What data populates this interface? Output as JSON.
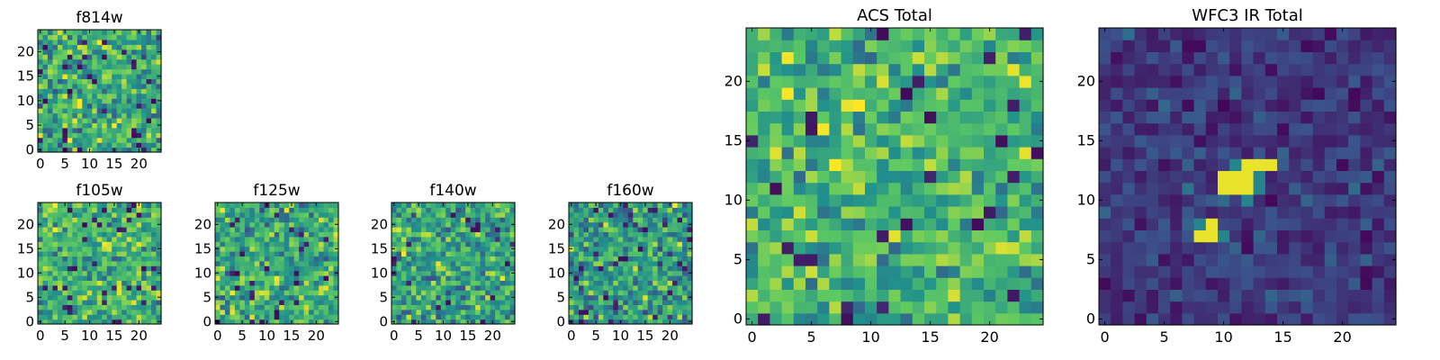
{
  "figure": {
    "background": "#ffffff"
  },
  "colormap": {
    "name": "viridis",
    "stops": [
      "#440154",
      "#3b528b",
      "#21918c",
      "#5ec962",
      "#fde725"
    ]
  },
  "chart_data": [
    {
      "id": "f814w",
      "type": "heatmap",
      "title": "f814w",
      "size": 25,
      "xlim": [
        0,
        24
      ],
      "ylim": [
        0,
        24
      ],
      "xticks": [
        0,
        5,
        10,
        15,
        20
      ],
      "yticks": [
        0,
        5,
        10,
        15,
        20
      ],
      "value_range": [
        0,
        1
      ],
      "pattern": "noise",
      "seed": 11,
      "mean": 0.6,
      "spread": 0.45
    },
    {
      "id": "f105w",
      "type": "heatmap",
      "title": "f105w",
      "size": 25,
      "xlim": [
        0,
        24
      ],
      "ylim": [
        0,
        24
      ],
      "xticks": [
        0,
        5,
        10,
        15,
        20
      ],
      "yticks": [
        0,
        5,
        10,
        15,
        20
      ],
      "value_range": [
        0,
        1
      ],
      "pattern": "noise",
      "seed": 23,
      "mean": 0.65,
      "spread": 0.4
    },
    {
      "id": "f125w",
      "type": "heatmap",
      "title": "f125w",
      "size": 25,
      "xlim": [
        0,
        24
      ],
      "ylim": [
        0,
        24
      ],
      "xticks": [
        0,
        5,
        10,
        15,
        20
      ],
      "yticks": [
        0,
        5,
        10,
        15,
        20
      ],
      "value_range": [
        0,
        1
      ],
      "pattern": "noise",
      "seed": 37,
      "mean": 0.62,
      "spread": 0.42
    },
    {
      "id": "f140w",
      "type": "heatmap",
      "title": "f140w",
      "size": 25,
      "xlim": [
        0,
        24
      ],
      "ylim": [
        0,
        24
      ],
      "xticks": [
        0,
        5,
        10,
        15,
        20
      ],
      "yticks": [
        0,
        5,
        10,
        15,
        20
      ],
      "value_range": [
        0,
        1
      ],
      "pattern": "noise",
      "seed": 41,
      "mean": 0.58,
      "spread": 0.42
    },
    {
      "id": "f160w",
      "type": "heatmap",
      "title": "f160w",
      "size": 25,
      "xlim": [
        0,
        24
      ],
      "ylim": [
        0,
        24
      ],
      "xticks": [
        0,
        5,
        10,
        15,
        20
      ],
      "yticks": [
        0,
        5,
        10,
        15,
        20
      ],
      "value_range": [
        0,
        1
      ],
      "pattern": "noise",
      "seed": 53,
      "mean": 0.55,
      "spread": 0.45
    },
    {
      "id": "acs_total",
      "type": "heatmap",
      "title": "ACS Total",
      "size": 25,
      "xlim": [
        0,
        24
      ],
      "ylim": [
        0,
        24
      ],
      "xticks": [
        0,
        5,
        10,
        15,
        20
      ],
      "yticks": [
        0,
        5,
        10,
        15,
        20
      ],
      "value_range": [
        0,
        1
      ],
      "pattern": "noise",
      "seed": 67,
      "mean": 0.66,
      "spread": 0.38
    },
    {
      "id": "wfc3_ir_total",
      "type": "heatmap",
      "title": "WFC3 IR Total",
      "size": 25,
      "xlim": [
        0,
        24
      ],
      "ylim": [
        0,
        24
      ],
      "xticks": [
        0,
        5,
        10,
        15,
        20
      ],
      "yticks": [
        0,
        5,
        10,
        15,
        20
      ],
      "value_range": [
        0,
        1
      ],
      "pattern": "source",
      "seed": 79,
      "mean": 0.18,
      "spread": 0.18,
      "bright_cells": [
        [
          12,
          13
        ],
        [
          13,
          13
        ],
        [
          14,
          13
        ],
        [
          10,
          12
        ],
        [
          11,
          12
        ],
        [
          12,
          12
        ],
        [
          10,
          11
        ],
        [
          11,
          11
        ],
        [
          12,
          11
        ],
        [
          9,
          8
        ],
        [
          8,
          7
        ],
        [
          9,
          7
        ]
      ],
      "bright_value": 0.97,
      "halo_cells": [
        [
          13,
          12
        ],
        [
          11,
          13
        ],
        [
          8,
          8
        ],
        [
          10,
          7
        ],
        [
          12,
          10
        ],
        [
          13,
          11
        ]
      ],
      "halo_value": 0.45
    }
  ]
}
